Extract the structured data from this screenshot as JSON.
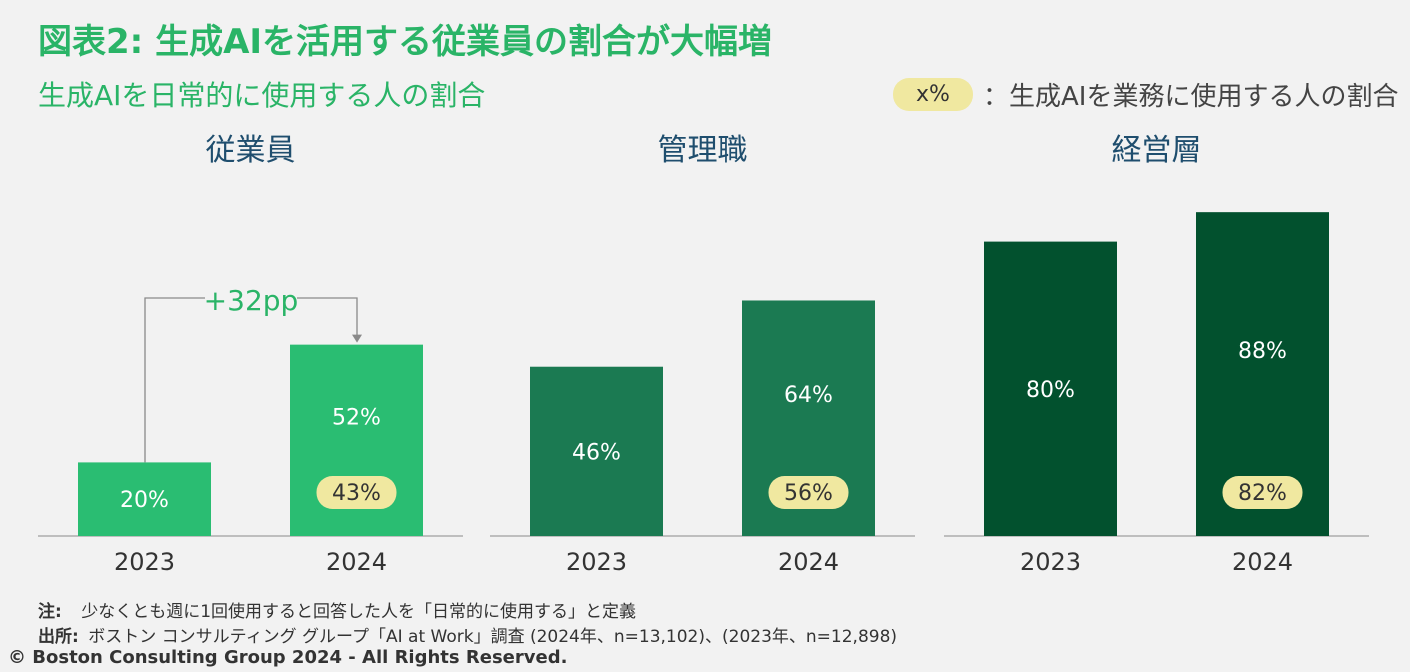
{
  "title": "図表2: 生成AIを活用する従業員の割合が大幅増",
  "subtitle": "生成AIを日常的に使用する人の割合",
  "legend": {
    "swatch_label": "x%",
    "text": "：生成AIを業務に使用する人の割合"
  },
  "chart_data": {
    "type": "bar",
    "title": "図表2: 生成AIを活用する従業員の割合が大幅増",
    "ylabel": "生成AIを日常的に使用する人の割合",
    "ylim": [
      0,
      100
    ],
    "colors": {
      "従業員": "#2abd72",
      "管理職": "#1b7a52",
      "経営層": "#02512e",
      "pill": "#f0e8a0"
    },
    "panels": [
      {
        "name": "従業員",
        "categories": [
          "2023",
          "2024"
        ],
        "values": [
          20,
          52
        ],
        "labels": [
          "20%",
          "52%"
        ],
        "work_use": [
          null,
          43
        ],
        "work_use_labels": [
          "",
          "43%"
        ],
        "annotation": "+32pp"
      },
      {
        "name": "管理職",
        "categories": [
          "2023",
          "2024"
        ],
        "values": [
          46,
          64
        ],
        "labels": [
          "46%",
          "64%"
        ],
        "work_use": [
          null,
          56
        ],
        "work_use_labels": [
          "",
          "56%"
        ]
      },
      {
        "name": "経営層",
        "categories": [
          "2023",
          "2024"
        ],
        "values": [
          80,
          88
        ],
        "labels": [
          "80%",
          "88%"
        ],
        "work_use": [
          null,
          82
        ],
        "work_use_labels": [
          "",
          "82%"
        ]
      }
    ]
  },
  "notes": {
    "note_label": "注:",
    "note_text": "少なくとも週に1回使用すると回答した人を「日常的に使用する」と定義",
    "source_label": "出所:",
    "source_text": "ボストン コンサルティング グループ「AI at Work」調査 (2024年、n=13,102)、(2023年、n=12,898)"
  },
  "copyright": "© Boston Consulting Group 2024 - All Rights Reserved."
}
